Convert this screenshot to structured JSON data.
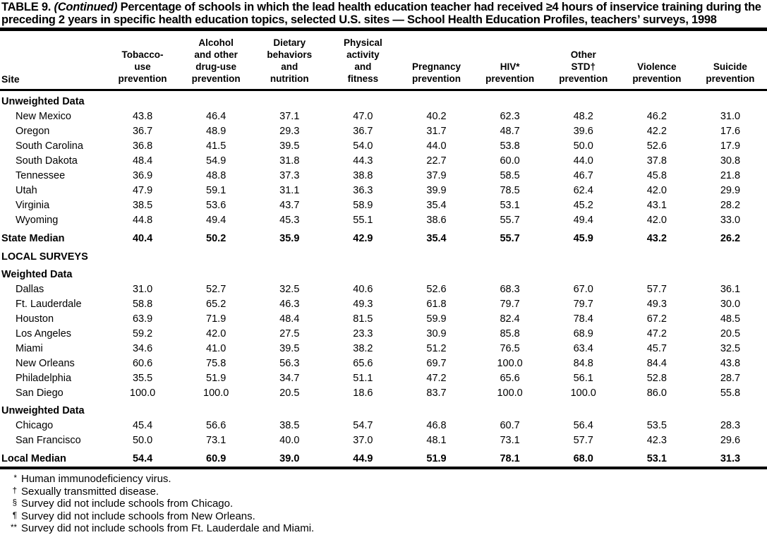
{
  "colors": {
    "text": "#000000",
    "background": "#ffffff",
    "rule": "#000000"
  },
  "title": {
    "label": "TABLE 9.",
    "continued": "(Continued)",
    "caption": "Percentage of schools in which the lead health education teacher had received ≥4 hours of inservice training during the preceding 2 years in specific health education topics, selected U.S. sites — School Health Education Profiles, teachers’ surveys, 1998"
  },
  "table": {
    "site_header": "Site",
    "columns": [
      "Tobacco-\nuse\nprevention",
      "Alcohol\nand other\ndrug-use\nprevention",
      "Dietary\nbehaviors\nand\nnutrition",
      "Physical\nactivity\nand\nfitness",
      "Pregnancy\nprevention",
      "HIV*\nprevention",
      "Other\nSTD†\nprevention",
      "Violence\nprevention",
      "Suicide\nprevention"
    ],
    "rows": [
      {
        "type": "section",
        "label": "Unweighted Data"
      },
      {
        "type": "data",
        "site": "New Mexico",
        "values": [
          "43.8",
          "46.4",
          "37.1",
          "47.0",
          "40.2",
          "62.3",
          "48.2",
          "46.2",
          "31.0"
        ]
      },
      {
        "type": "data",
        "site": "Oregon",
        "values": [
          "36.7",
          "48.9",
          "29.3",
          "36.7",
          "31.7",
          "48.7",
          "39.6",
          "42.2",
          "17.6"
        ]
      },
      {
        "type": "data",
        "site": "South Carolina",
        "values": [
          "36.8",
          "41.5",
          "39.5",
          "54.0",
          "44.0",
          "53.8",
          "50.0",
          "52.6",
          "17.9"
        ]
      },
      {
        "type": "data",
        "site": "South Dakota",
        "values": [
          "48.4",
          "54.9",
          "31.8",
          "44.3",
          "22.7",
          "60.0",
          "44.0",
          "37.8",
          "30.8"
        ]
      },
      {
        "type": "data",
        "site": "Tennessee",
        "values": [
          "36.9",
          "48.8",
          "37.3",
          "38.8",
          "37.9",
          "58.5",
          "46.7",
          "45.8",
          "21.8"
        ]
      },
      {
        "type": "data",
        "site": "Utah",
        "values": [
          "47.9",
          "59.1",
          "31.1",
          "36.3",
          "39.9",
          "78.5",
          "62.4",
          "42.0",
          "29.9"
        ]
      },
      {
        "type": "data",
        "site": "Virginia",
        "values": [
          "38.5",
          "53.6",
          "43.7",
          "58.9",
          "35.4",
          "53.1",
          "45.2",
          "43.1",
          "28.2"
        ]
      },
      {
        "type": "data",
        "site": "Wyoming",
        "values": [
          "44.8",
          "49.4",
          "45.3",
          "55.1",
          "38.6",
          "55.7",
          "49.4",
          "42.0",
          "33.0"
        ]
      },
      {
        "type": "median",
        "site": "State Median",
        "values": [
          "40.4",
          "50.2",
          "35.9",
          "42.9",
          "35.4",
          "55.7",
          "45.9",
          "43.2",
          "26.2"
        ]
      },
      {
        "type": "group",
        "label": "LOCAL SURVEYS"
      },
      {
        "type": "section",
        "label": "Weighted Data"
      },
      {
        "type": "data",
        "site": "Dallas",
        "values": [
          "31.0",
          "52.7",
          "32.5",
          "40.6",
          "52.6",
          "68.3",
          "67.0",
          "57.7",
          "36.1"
        ]
      },
      {
        "type": "data",
        "site": "Ft. Lauderdale",
        "values": [
          "58.8",
          "65.2",
          "46.3",
          "49.3",
          "61.8",
          "79.7",
          "79.7",
          "49.3",
          "30.0"
        ]
      },
      {
        "type": "data",
        "site": "Houston",
        "values": [
          "63.9",
          "71.9",
          "48.4",
          "81.5",
          "59.9",
          "82.4",
          "78.4",
          "67.2",
          "48.5"
        ]
      },
      {
        "type": "data",
        "site": "Los Angeles",
        "values": [
          "59.2",
          "42.0",
          "27.5",
          "23.3",
          "30.9",
          "85.8",
          "68.9",
          "47.2",
          "20.5"
        ]
      },
      {
        "type": "data",
        "site": "Miami",
        "values": [
          "34.6",
          "41.0",
          "39.5",
          "38.2",
          "51.2",
          "76.5",
          "63.4",
          "45.7",
          "32.5"
        ]
      },
      {
        "type": "data",
        "site": "New Orleans",
        "values": [
          "60.6",
          "75.8",
          "56.3",
          "65.6",
          "69.7",
          "100.0",
          "84.8",
          "84.4",
          "43.8"
        ]
      },
      {
        "type": "data",
        "site": "Philadelphia",
        "values": [
          "35.5",
          "51.9",
          "34.7",
          "51.1",
          "47.2",
          "65.6",
          "56.1",
          "52.8",
          "28.7"
        ]
      },
      {
        "type": "data",
        "site": "San Diego",
        "values": [
          "100.0",
          "100.0",
          "20.5",
          "18.6",
          "83.7",
          "100.0",
          "100.0",
          "86.0",
          "55.8"
        ]
      },
      {
        "type": "section",
        "label": "Unweighted Data"
      },
      {
        "type": "data",
        "site": "Chicago",
        "values": [
          "45.4",
          "56.6",
          "38.5",
          "54.7",
          "46.8",
          "60.7",
          "56.4",
          "53.5",
          "28.3"
        ]
      },
      {
        "type": "data",
        "site": "San Francisco",
        "values": [
          "50.0",
          "73.1",
          "40.0",
          "37.0",
          "48.1",
          "73.1",
          "57.7",
          "42.3",
          "29.6"
        ]
      },
      {
        "type": "median",
        "site": "Local Median",
        "values": [
          "54.4",
          "60.9",
          "39.0",
          "44.9",
          "51.9",
          "78.1",
          "68.0",
          "53.1",
          "31.3"
        ]
      }
    ]
  },
  "footnotes": [
    {
      "marker": "*",
      "text": "Human immunodeficiency virus."
    },
    {
      "marker": "†",
      "text": "Sexually transmitted disease."
    },
    {
      "marker": "§",
      "text": "Survey did not include schools from Chicago."
    },
    {
      "marker": "¶",
      "text": "Survey did not include schools from New Orleans."
    },
    {
      "marker": "**",
      "text": "Survey did not include schools from Ft. Lauderdale and Miami."
    }
  ]
}
